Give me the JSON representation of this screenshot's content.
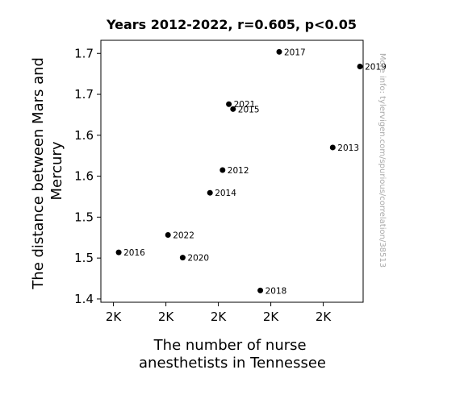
{
  "chart_data": {
    "type": "scatter",
    "title": "Years 2012-2022, r=0.605, p<0.05",
    "xlabel": [
      "The number of nurse",
      "anesthetists in Tennessee"
    ],
    "ylabel": [
      "The distance between Mars and",
      "Mercury"
    ],
    "side_note": "More info: tylervigen.com/spurious/correlation/38513",
    "xlim": [
      1988,
      2238
    ],
    "ylim": [
      1.396,
      1.716
    ],
    "x_ticks": [
      {
        "value": 2000,
        "label": "2K"
      },
      {
        "value": 2050,
        "label": "2K"
      },
      {
        "value": 2100,
        "label": "2K"
      },
      {
        "value": 2150,
        "label": "2K"
      },
      {
        "value": 2200,
        "label": "2K"
      }
    ],
    "y_ticks": [
      {
        "value": 1.4,
        "label": "1.4"
      },
      {
        "value": 1.45,
        "label": "1.5"
      },
      {
        "value": 1.5,
        "label": "1.5"
      },
      {
        "value": 1.55,
        "label": "1.6"
      },
      {
        "value": 1.6,
        "label": "1.6"
      },
      {
        "value": 1.65,
        "label": "1.7"
      },
      {
        "value": 1.7,
        "label": "1.7"
      }
    ],
    "points": [
      {
        "label": "2012",
        "x": 2104,
        "y": 1.5575
      },
      {
        "label": "2013",
        "x": 2209,
        "y": 1.5851
      },
      {
        "label": "2014",
        "x": 2092,
        "y": 1.5297
      },
      {
        "label": "2015",
        "x": 2114,
        "y": 1.632
      },
      {
        "label": "2016",
        "x": 2005,
        "y": 1.4569
      },
      {
        "label": "2017",
        "x": 2158,
        "y": 1.7019
      },
      {
        "label": "2018",
        "x": 2140,
        "y": 1.4104
      },
      {
        "label": "2019",
        "x": 2235,
        "y": 1.684
      },
      {
        "label": "2020",
        "x": 2066,
        "y": 1.4505
      },
      {
        "label": "2021",
        "x": 2110,
        "y": 1.638
      },
      {
        "label": "2022",
        "x": 2052,
        "y": 1.4782
      }
    ]
  }
}
